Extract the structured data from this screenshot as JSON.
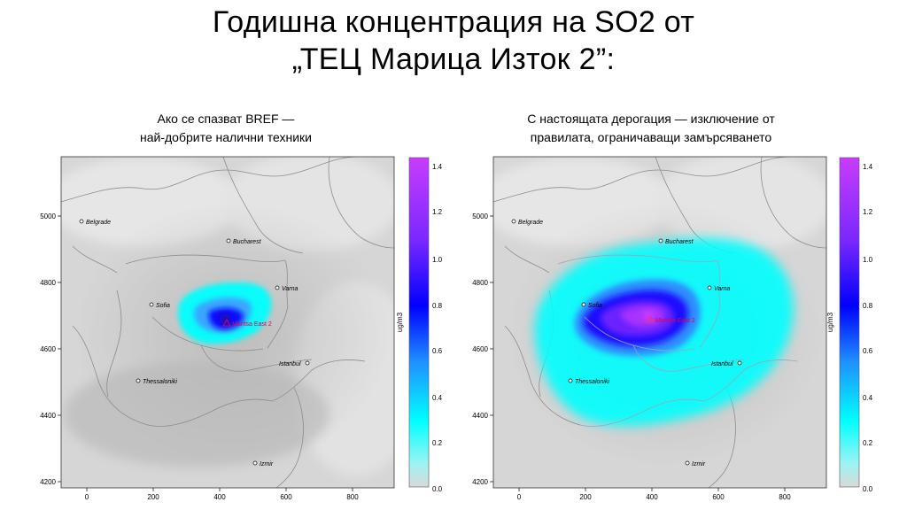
{
  "title": {
    "line1": "Годишна концентрация на SO2 от",
    "line2": "„ТЕЦ Марица Изток 2”:"
  },
  "panels": [
    {
      "title_line1": "Ако се спазват BREF —",
      "title_line2": "най-добрите налични техники",
      "intensity": "low"
    },
    {
      "title_line1": "С настоящата дерогация — изключение от",
      "title_line2": "правилата, ограничаващи замърсяването",
      "intensity": "high"
    }
  ],
  "map": {
    "y_ticks": [
      "5000",
      "4800",
      "4600",
      "4400",
      "4200"
    ],
    "x_ticks": [
      "0",
      "200",
      "400",
      "600",
      "800"
    ],
    "cities": [
      "Belgrade",
      "Bucharest",
      "Varna",
      "Sofia",
      "Istanbul",
      "Thessaloniki",
      "Izmir"
    ],
    "plant_label": "Maritsa East 2"
  },
  "colorbar": {
    "unit": "ug/m3",
    "ticks": [
      "1.4",
      "1.2",
      "1.0",
      "0.8",
      "0.6",
      "0.4",
      "0.2",
      "0.0"
    ],
    "min": 0.0,
    "max": 1.45,
    "colors": [
      "#d8d8d8",
      "#00ffff",
      "#1e90ff",
      "#0000ff",
      "#9b30ff",
      "#cc33ff"
    ]
  }
}
